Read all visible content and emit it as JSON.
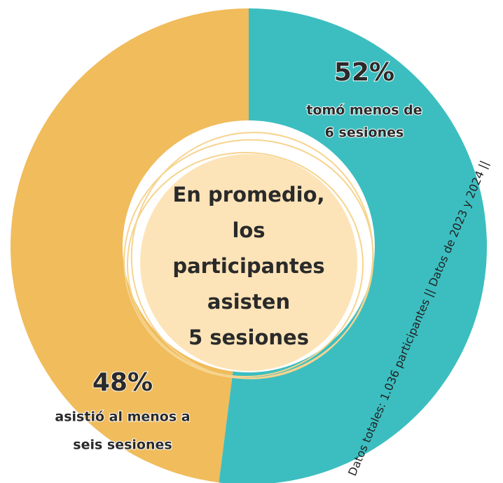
{
  "chart_data": {
    "type": "donut",
    "values": [
      52,
      48
    ],
    "value_labels": [
      "52%",
      "48%"
    ],
    "categories": [
      [
        "tomó menos de",
        "6 sesiones"
      ],
      [
        "asistió al menos a",
        "seis sesiones"
      ]
    ],
    "colors": [
      "#3cbec0",
      "#f0bc5c"
    ],
    "center_text": [
      "En promedio,",
      "los",
      "participantes",
      "asisten",
      "5 sesiones"
    ],
    "footnote": "Datos totales: 1.036 participantes || Datos de 2023 y 2024 ||"
  }
}
